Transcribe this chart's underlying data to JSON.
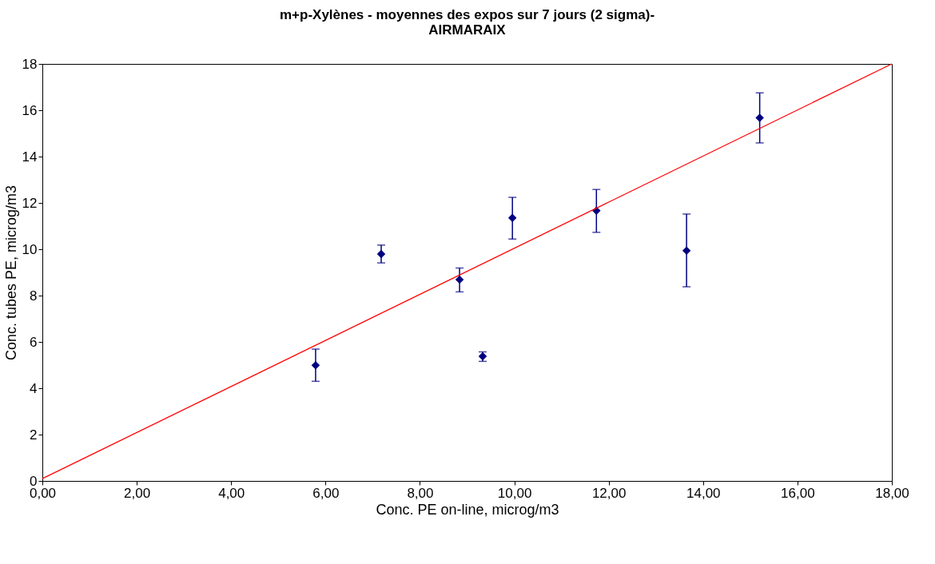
{
  "chart_data": {
    "type": "scatter",
    "title": "m+p-Xylènes - moyennes des expos sur 7 jours (2 sigma)-\nAIRMARAIX",
    "xlabel": "Conc. PE on-line, microg/m3",
    "ylabel": "Conc. tubes PE, microg/m3",
    "xlim": [
      0,
      18
    ],
    "ylim": [
      0,
      18
    ],
    "xticks": [
      {
        "value": 0,
        "label": "0,00"
      },
      {
        "value": 2,
        "label": "2,00"
      },
      {
        "value": 4,
        "label": "4,00"
      },
      {
        "value": 6,
        "label": "6,00"
      },
      {
        "value": 8,
        "label": "8,00"
      },
      {
        "value": 10,
        "label": "10,00"
      },
      {
        "value": 12,
        "label": "12,00"
      },
      {
        "value": 14,
        "label": "14,00"
      },
      {
        "value": 16,
        "label": "16,00"
      },
      {
        "value": 18,
        "label": "18,00"
      }
    ],
    "yticks": [
      0,
      2,
      4,
      6,
      8,
      10,
      12,
      14,
      16,
      18
    ],
    "grid": false,
    "series": [
      {
        "marker": "diamond",
        "color": "#000080",
        "x": [
          5.79,
          7.18,
          8.84,
          9.33,
          9.96,
          11.74,
          13.65,
          15.2
        ],
        "values": [
          4.99,
          9.79,
          8.69,
          5.38,
          11.35,
          11.66,
          9.94,
          15.67
        ],
        "errors": [
          [
            4.3,
            5.69
          ],
          [
            9.41,
            10.18
          ],
          [
            8.16,
            9.19
          ],
          [
            5.16,
            5.57
          ],
          [
            10.44,
            12.24
          ],
          [
            10.73,
            12.58
          ],
          [
            8.38,
            11.52
          ],
          [
            14.59,
            16.75
          ]
        ]
      },
      {
        "type": "line",
        "color": "#ff0000",
        "x": [
          0,
          18
        ],
        "values": [
          0.1,
          18
        ]
      }
    ]
  }
}
